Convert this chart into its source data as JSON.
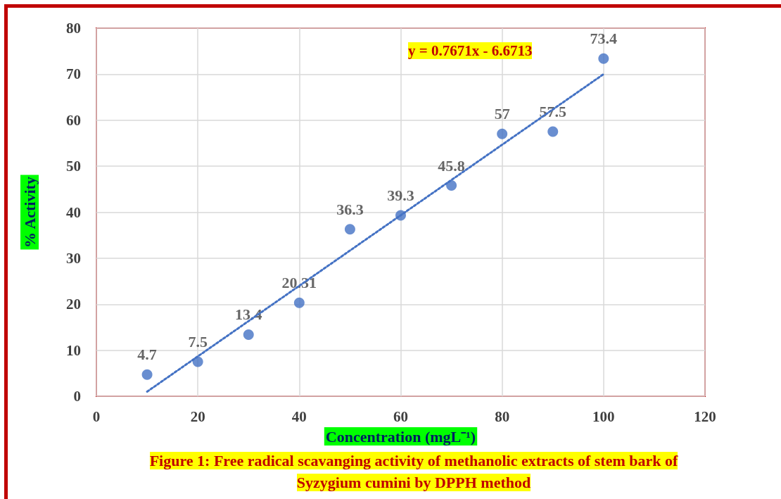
{
  "chart_data": {
    "type": "scatter",
    "xlabel": "Concentration (mgL⁻¹)",
    "ylabel": "% Activity",
    "annotations": [
      "y = 0.7671x - 6.6713",
      "Figure 1:  Free radical scavanging activity of methanolic extracts of stem bark of Syzygium cumini by DPPH method"
    ],
    "x": [
      10,
      20,
      30,
      40,
      50,
      60,
      70,
      80,
      90,
      100
    ],
    "series": [
      {
        "color": "#4472c4",
        "values": [
          4.7,
          7.5,
          13.4,
          20.31,
          36.3,
          39.3,
          45.8,
          57,
          57.5,
          73.4
        ],
        "value_labels": [
          "4.7",
          "7.5",
          "13.4",
          "20.31",
          "36.3",
          "39.3",
          "45.8",
          "57",
          "57.5",
          "73.4"
        ]
      },
      {
        "type": "line",
        "x": [
          10,
          100
        ],
        "values": [
          1,
          70
        ],
        "color": "#4472c4",
        "line_style": "dotted",
        "marker": "none"
      }
    ],
    "xlim": [
      0,
      120
    ],
    "xticks": [
      0,
      20,
      40,
      60,
      80,
      100,
      120
    ],
    "ylim": [
      0,
      80
    ],
    "yticks": [
      0,
      10,
      20,
      30,
      40,
      50,
      60,
      70,
      80
    ],
    "grid": true,
    "marker": "circle"
  }
}
